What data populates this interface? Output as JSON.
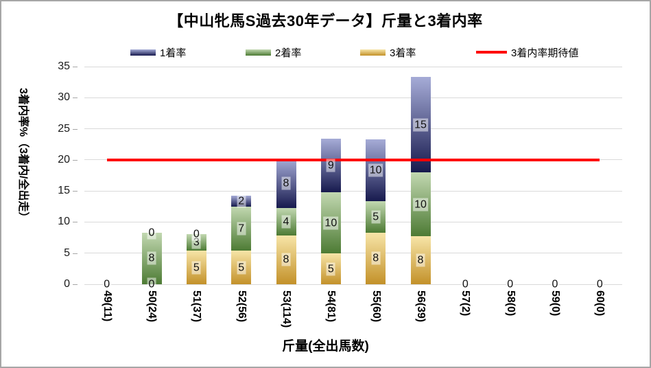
{
  "chart_data": {
    "type": "bar",
    "stacked": true,
    "title": "【中山牝馬S過去30年データ】斤量と3着内率",
    "xlabel": "斤量(全出馬数)",
    "ylabel": "3着内率%（3着内/全出走）",
    "ylim": [
      0,
      35
    ],
    "yticks": [
      0,
      5,
      10,
      15,
      20,
      25,
      30,
      35
    ],
    "grid": true,
    "legend_position": "top",
    "categories": [
      "49(11)",
      "50(24)",
      "51(37)",
      "52(56)",
      "53(114)",
      "54(81)",
      "55(60)",
      "56(39)",
      "57(2)",
      "58(0)",
      "59(0)",
      "60(0)"
    ],
    "series": [
      {
        "name": "3着率",
        "color_light": "#f7e5a8",
        "color_dark": "#c39129",
        "values": [
          0,
          0,
          5.41,
          5.36,
          7.89,
          4.94,
          8.33,
          7.69,
          0,
          0,
          0,
          0
        ],
        "labels": [
          0,
          0,
          5,
          5,
          8,
          5,
          8,
          8,
          0,
          0,
          0,
          0
        ]
      },
      {
        "name": "2着率",
        "color_light": "#c2d8b1",
        "color_dark": "#4d7b34",
        "values": [
          0,
          8.33,
          2.7,
          7.14,
          4.39,
          9.88,
          5.0,
          10.26,
          0,
          0,
          0,
          0
        ],
        "labels": [
          0,
          8,
          3,
          7,
          4,
          10,
          5,
          10,
          0,
          0,
          0,
          0
        ]
      },
      {
        "name": "1着率",
        "color_light": "#a6acd7",
        "color_dark": "#171a4e",
        "values": [
          0,
          0,
          0,
          1.79,
          7.89,
          8.64,
          10.0,
          15.38,
          0,
          0,
          0,
          0
        ],
        "labels": [
          0,
          0,
          0,
          2,
          8,
          9,
          10,
          15,
          0,
          0,
          0,
          0
        ]
      }
    ],
    "line_series": {
      "name": "3着内率期待値",
      "value": 20,
      "color": "#fe0000"
    }
  },
  "legend": [
    {
      "name": "1着率",
      "type": "box",
      "color_light": "#a6acd7",
      "color_dark": "#171a4e"
    },
    {
      "name": "2着率",
      "type": "box",
      "color_light": "#c2d8b1",
      "color_dark": "#4d7b34"
    },
    {
      "name": "3着率",
      "type": "box",
      "color_light": "#f7e5a8",
      "color_dark": "#c39129"
    },
    {
      "name": "3着内率期待値",
      "type": "line",
      "color": "#fe0000"
    }
  ],
  "frame": {
    "border_color": "#a6a6a6",
    "background": "#ffffff",
    "gridline_color": "#d9d9d9"
  }
}
